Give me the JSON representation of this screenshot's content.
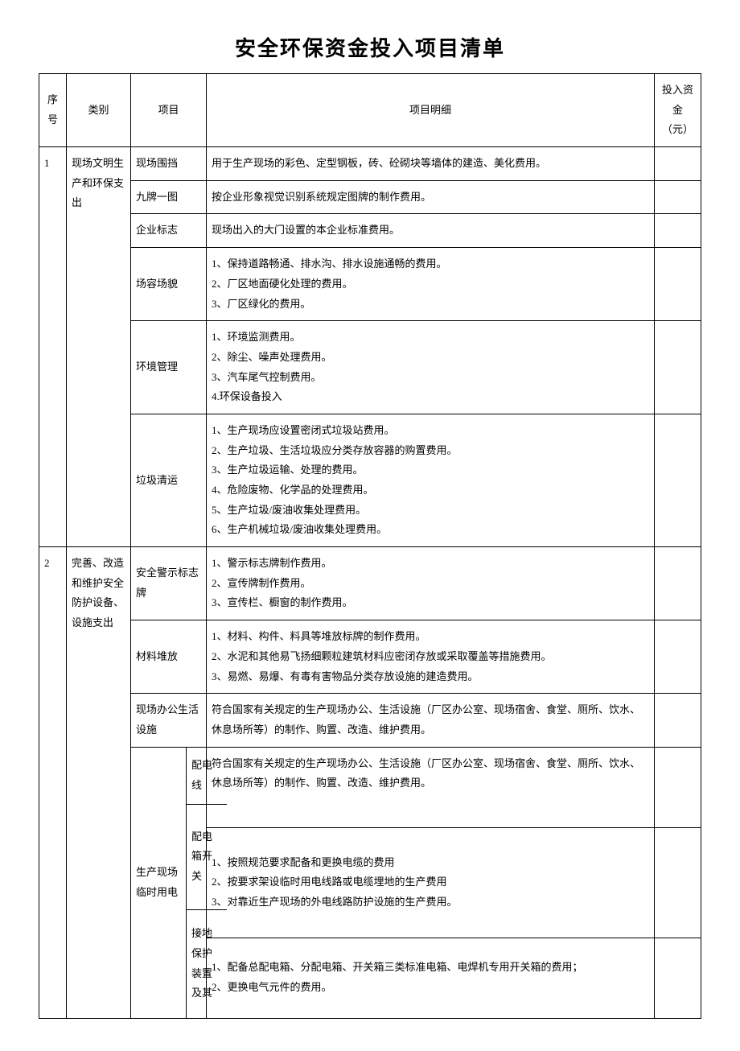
{
  "title": "安全环保资金投入项目清单",
  "headers": {
    "seq": "序号",
    "category": "类别",
    "project": "项目",
    "detail": "项目明细",
    "amount": "投入资金（元）"
  },
  "rows": [
    {
      "seq": "1",
      "category": "现场文明生产和环保支出",
      "items": [
        {
          "name": "现场围挡",
          "detail": "用于生产现场的彩色、定型钢板，砖、砼砌块等墙体的建造、美化费用。",
          "amount": ""
        },
        {
          "name": "九牌一图",
          "detail": "按企业形象视觉识别系统规定图牌的制作费用。",
          "amount": ""
        },
        {
          "name": "企业标志",
          "detail": "现场出入的大门设置的本企业标准费用。",
          "amount": ""
        },
        {
          "name": "场容场貌",
          "detail": "1、保持道路畅通、排水沟、排水设施通畅的费用。\n2、厂区地面硬化处理的费用。\n3、厂区绿化的费用。",
          "amount": ""
        },
        {
          "name": "环境管理",
          "detail": "1、环境监测费用。\n2、除尘、噪声处理费用。\n3、汽车尾气控制费用。\n4.环保设备投入",
          "amount": ""
        },
        {
          "name": "垃圾清运",
          "detail": "1、生产现场应设置密闭式垃圾站费用。\n2、生产垃圾、生活垃圾应分类存放容器的购置费用。\n3、生产垃圾运输、处理的费用。\n4、危险废物、化学品的处理费用。\n5、生产垃圾/废油收集处理费用。\n6、生产机械垃圾/废油收集处理费用。",
          "amount": ""
        }
      ]
    },
    {
      "seq": "2",
      "category": "完善、改造和维护安全防护设备、设施支出",
      "items": [
        {
          "name": "安全警示标志牌",
          "detail": "1、警示标志牌制作费用。\n2、宣传牌制作费用。\n3、宣传栏、橱窗的制作费用。",
          "amount": ""
        },
        {
          "name": "材料堆放",
          "detail": "1、材料、构件、料具等堆放标牌的制作费用。\n2、水泥和其他易飞扬细颗粒建筑材料应密闭存放或采取覆盖等措施费用。\n3、易燃、易爆、有毒有害物品分类存放设施的建造费用。",
          "amount": ""
        },
        {
          "name": "现场办公生活设施",
          "detail": "符合国家有关规定的生产现场办公、生活设施（厂区办公室、现场宿舍、食堂、厕所、饮水、休息场所等）的制作、购置、改造、维护费用。",
          "amount": ""
        },
        {
          "name": "生产现场临时用电",
          "sub": [
            {
              "subname": "配电线",
              "detail": "符合国家有关规定的生产现场办公、生活设施（厂区办公室、现场宿舍、食堂、厕所、饮水、休息场所等）的制作、购置、改造、维护费用。",
              "amount": ""
            },
            {
              "subname": "配电箱开关",
              "detail": "1、按照规范要求配备和更换电缆的费用\n2、按要求架设临时用电线路或电缆埋地的生产费用\n3、对靠近生产现场的外电线路防护设施的生产费用。",
              "amount": ""
            },
            {
              "subname": "接地保护装置及其",
              "detail": "1、配备总配电箱、分配电箱、开关箱三类标准电箱、电焊机专用开关箱的费用；\n2、更换电气元件的费用。",
              "amount": ""
            }
          ]
        }
      ]
    }
  ]
}
